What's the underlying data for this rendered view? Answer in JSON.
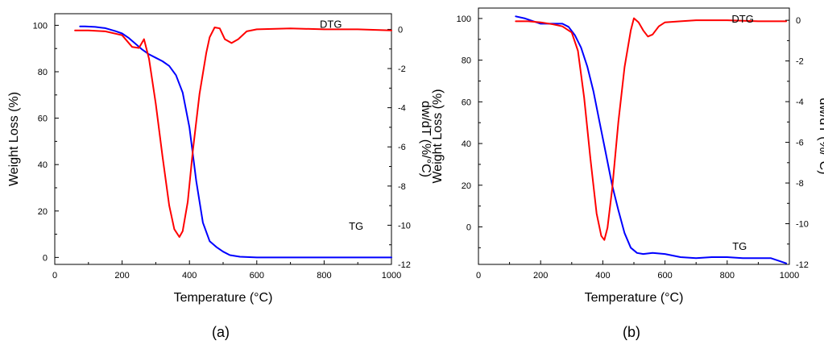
{
  "chart_data": [
    {
      "type": "line",
      "caption": "(a)",
      "xlabel": "Temperature (°C)",
      "ylabel": "Weight Loss (%)",
      "y2label": "dw/dT (%/°C)",
      "xlim": [
        0,
        1000
      ],
      "ylim": [
        -3,
        105
      ],
      "y2lim": [
        -12,
        0.8
      ],
      "xticks": [
        0,
        200,
        400,
        600,
        800,
        1000
      ],
      "yticks": [
        0,
        20,
        40,
        60,
        80,
        100
      ],
      "y2ticks": [
        0,
        -2,
        -4,
        -6,
        -8,
        -10,
        -12
      ],
      "grid": false,
      "series": [
        {
          "name": "TG",
          "axis": "left",
          "color": "#0000ff",
          "label_pos": [
            895,
            12
          ],
          "x": [
            75,
            90,
            120,
            150,
            180,
            200,
            220,
            240,
            260,
            280,
            300,
            320,
            340,
            360,
            380,
            400,
            420,
            440,
            460,
            480,
            500,
            520,
            550,
            600,
            700,
            800,
            900,
            950,
            1000
          ],
          "y": [
            99.5,
            99.5,
            99.3,
            98.8,
            97.5,
            96.5,
            94.5,
            92,
            89.5,
            87.5,
            86,
            84.5,
            82.5,
            78.5,
            71,
            56,
            33,
            15,
            7,
            4.5,
            2.5,
            1,
            0.3,
            0,
            0,
            0,
            0,
            0,
            0
          ]
        },
        {
          "name": "DTG",
          "axis": "right",
          "color": "#ff0000",
          "label_pos": [
            820,
            99
          ],
          "x": [
            60,
            100,
            150,
            200,
            230,
            250,
            265,
            280,
            300,
            320,
            340,
            355,
            370,
            380,
            395,
            410,
            430,
            450,
            460,
            475,
            490,
            505,
            525,
            545,
            570,
            600,
            700,
            800,
            900,
            1000
          ],
          "y": [
            -0.05,
            -0.05,
            -0.1,
            -0.3,
            -0.9,
            -0.95,
            -0.5,
            -1.5,
            -3.8,
            -6.5,
            -9.0,
            -10.2,
            -10.6,
            -10.3,
            -8.8,
            -6.2,
            -3.3,
            -1.2,
            -0.4,
            0.1,
            0.05,
            -0.5,
            -0.7,
            -0.5,
            -0.1,
            0,
            0.05,
            0,
            0,
            -0.05
          ]
        }
      ]
    },
    {
      "type": "line",
      "caption": "(b)",
      "xlabel": "Temperature (°C)",
      "ylabel": "Weight Loss (%)",
      "y2label": "dw/dT (%/°C)",
      "xlim": [
        0,
        1000
      ],
      "ylim": [
        -18,
        105
      ],
      "y2lim": [
        -12,
        0.6
      ],
      "xticks": [
        0,
        200,
        400,
        600,
        800,
        1000
      ],
      "yticks": [
        0,
        20,
        40,
        60,
        80,
        100
      ],
      "y2ticks": [
        0,
        -2,
        -4,
        -6,
        -8,
        -10,
        -12
      ],
      "grid": false,
      "series": [
        {
          "name": "TG",
          "axis": "left",
          "color": "#0000ff",
          "label_pos": [
            840,
            -11
          ],
          "x": [
            120,
            150,
            200,
            240,
            270,
            290,
            310,
            330,
            350,
            370,
            390,
            410,
            430,
            450,
            470,
            490,
            510,
            530,
            560,
            600,
            650,
            700,
            750,
            800,
            850,
            900,
            940,
            970,
            990
          ],
          "y": [
            101,
            100,
            97.5,
            97.5,
            97.5,
            96,
            92,
            86,
            77,
            65,
            50,
            35,
            20,
            8,
            -3,
            -10,
            -12.5,
            -13,
            -12.5,
            -13,
            -14.5,
            -15,
            -14.5,
            -14.5,
            -15,
            -15,
            -15,
            -16.5,
            -17.5
          ]
        },
        {
          "name": "DTG",
          "axis": "right",
          "color": "#ff0000",
          "label_pos": [
            850,
            98
          ],
          "x": [
            120,
            160,
            200,
            240,
            270,
            300,
            320,
            340,
            360,
            380,
            395,
            405,
            415,
            430,
            450,
            470,
            490,
            500,
            515,
            530,
            545,
            560,
            580,
            600,
            650,
            700,
            800,
            900,
            990
          ],
          "y": [
            -0.05,
            -0.05,
            -0.1,
            -0.2,
            -0.3,
            -0.6,
            -1.5,
            -3.8,
            -6.8,
            -9.5,
            -10.6,
            -10.8,
            -10.2,
            -8.3,
            -5.0,
            -2.3,
            -0.5,
            0.1,
            -0.1,
            -0.5,
            -0.8,
            -0.7,
            -0.3,
            -0.1,
            -0.05,
            0.0,
            0.0,
            -0.05,
            -0.05
          ]
        }
      ]
    }
  ]
}
